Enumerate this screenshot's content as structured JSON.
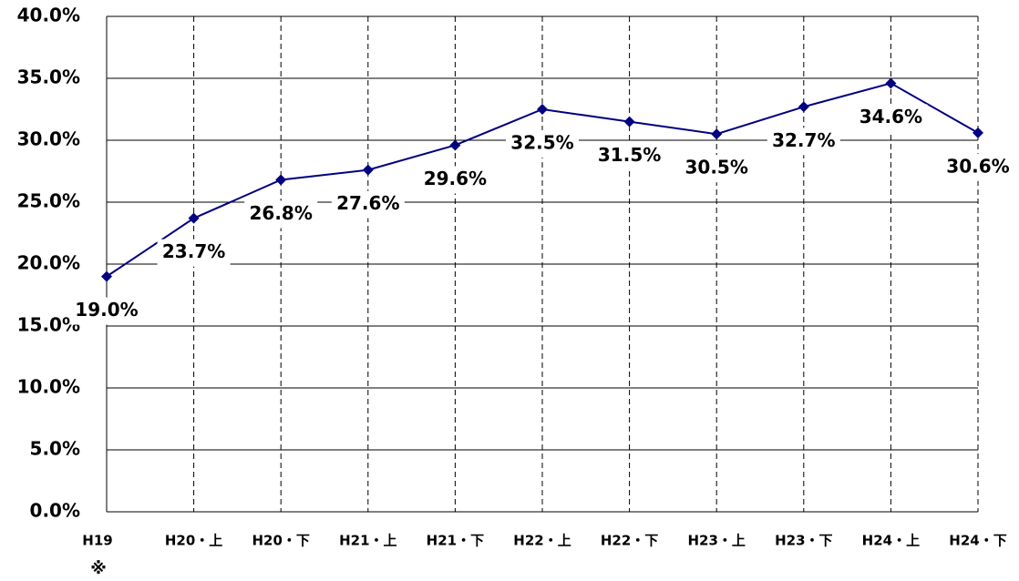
{
  "chart_data": {
    "type": "line",
    "categories": [
      "H19",
      "H20・上",
      "H20・下",
      "H21・上",
      "H21・下",
      "H22・上",
      "H22・下",
      "H23・上",
      "H23・下",
      "H24・上",
      "H24・下"
    ],
    "annotation": "※",
    "series": [
      {
        "color": "#000080",
        "values": [
          19.0,
          23.7,
          26.8,
          27.6,
          29.6,
          32.5,
          31.5,
          30.5,
          32.7,
          34.6,
          30.6
        ],
        "value_labels": [
          "19.0%",
          "23.7%",
          "26.8%",
          "27.6%",
          "29.6%",
          "32.5%",
          "31.5%",
          "30.5%",
          "32.7%",
          "34.6%",
          "30.6%"
        ]
      }
    ],
    "ylim": [
      0,
      40
    ],
    "yticks": [
      {
        "value": 0,
        "label": "0.0%"
      },
      {
        "value": 5,
        "label": "5.0%"
      },
      {
        "value": 10,
        "label": "10.0%"
      },
      {
        "value": 15,
        "label": "15.0%"
      },
      {
        "value": 20,
        "label": "20.0%"
      },
      {
        "value": 25,
        "label": "25.0%"
      },
      {
        "value": 30,
        "label": "30.0%"
      },
      {
        "value": 35,
        "label": "35.0%"
      },
      {
        "value": 40,
        "label": "40.0%"
      }
    ],
    "grid": true
  }
}
